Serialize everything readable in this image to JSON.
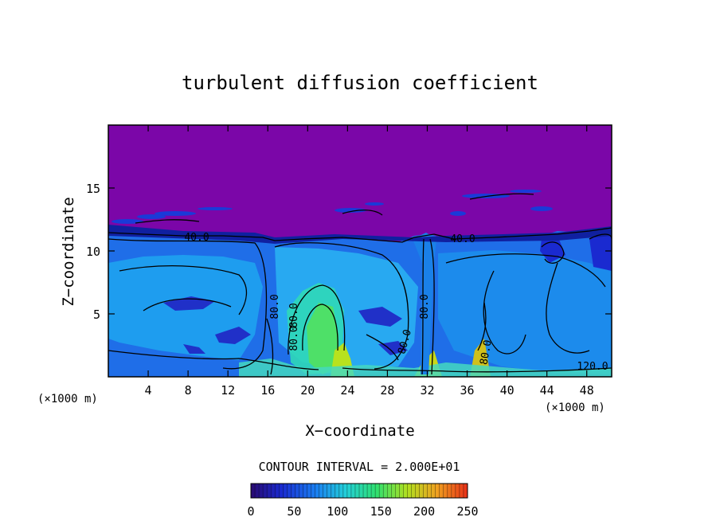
{
  "chart_data": {
    "type": "heatmap",
    "title": "turbulent diffusion coefficient",
    "xlabel": "X−coordinate",
    "ylabel": "Z−coordinate",
    "x_unit_left": "(×1000 m)",
    "x_unit_right": "(×1000 m)",
    "xlim": [
      0,
      50.5
    ],
    "ylim": [
      0,
      20
    ],
    "x_ticks": [
      4,
      8,
      12,
      16,
      20,
      24,
      28,
      32,
      36,
      40,
      44,
      48
    ],
    "y_ticks": [
      5,
      10,
      15
    ],
    "contour_interval_text": "CONTOUR INTERVAL = 2.000E+01",
    "contour_labels": [
      "40.0",
      "40.0",
      "80.0",
      "80.0",
      "80.0",
      "80.0",
      "80.0",
      "80.0",
      "120.0"
    ],
    "colorbar": {
      "min": 0,
      "max": 250,
      "ticks": [
        0,
        50,
        100,
        150,
        200,
        250
      ],
      "colors": [
        "#2a0a70",
        "#1a2ad0",
        "#1a7ef0",
        "#22d0d8",
        "#30e070",
        "#b0e020",
        "#f0a020",
        "#e83018"
      ]
    },
    "value_regions": {
      "upper_layer_z_above": 11,
      "upper_layer_value": 0,
      "boundary_layer_range": [
        30,
        120
      ],
      "peak_value_near_surface": 140
    }
  }
}
